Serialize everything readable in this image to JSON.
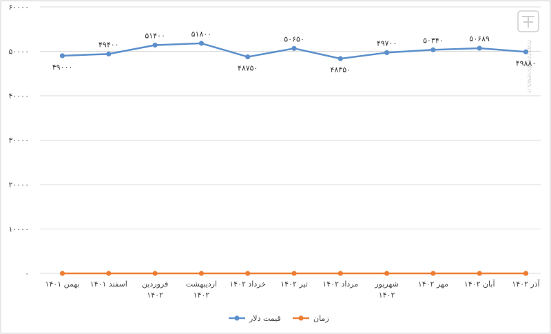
{
  "chart_data": {
    "type": "line",
    "title": "",
    "xlabel": "",
    "ylabel": "",
    "ylim": [
      0,
      60000
    ],
    "y_ticks": [
      0,
      10000,
      20000,
      30000,
      40000,
      50000,
      60000
    ],
    "y_tick_labels": [
      "۰",
      "۱۰۰۰۰",
      "۲۰۰۰۰",
      "۳۰۰۰۰",
      "۴۰۰۰۰",
      "۵۰۰۰۰",
      "۶۰۰۰۰"
    ],
    "categories": [
      [
        "بهمن ۱۴۰۱"
      ],
      [
        "اسفند ۱۴۰۱"
      ],
      [
        "فروردین",
        "۱۴۰۲"
      ],
      [
        "اردیبهشت",
        "۱۴۰۲"
      ],
      [
        "خرداد ۱۴۰۲"
      ],
      [
        "تیر ۱۴۰۲"
      ],
      [
        "مرداد ۱۴۰۲"
      ],
      [
        "شهریور",
        "۱۴۰۲"
      ],
      [
        "مهر ۱۴۰۲"
      ],
      [
        "آبان ۱۴۰۲"
      ],
      [
        "آذر ۱۴۰۲"
      ]
    ],
    "series": [
      {
        "name": "قیمت دلار",
        "color": "#5b8fcb",
        "values": [
          49000,
          49400,
          51400,
          51800,
          48750,
          50650,
          48350,
          49700,
          50340,
          50689,
          49880
        ],
        "labels": [
          "۴۹۰۰۰",
          "۴۹۴۰۰",
          "۵۱۴۰۰",
          "۵۱۸۰۰",
          "۴۸۷۵۰",
          "۵۰۶۵۰",
          "۴۸۳۵۰",
          "۴۹۷۰۰",
          "۵۰۳۴۰",
          "۵۰۶۸۹",
          "۴۹۸۸۰"
        ],
        "label_pos": [
          "below",
          "above",
          "above",
          "above",
          "below",
          "above",
          "below",
          "above",
          "above",
          "above",
          "below"
        ]
      },
      {
        "name": "زمان",
        "color": "#ed7d31",
        "values": [
          0,
          0,
          0,
          0,
          0,
          0,
          0,
          0,
          0,
          0,
          0
        ]
      }
    ],
    "grid": "horizontal",
    "legend_position": "bottom"
  },
  "watermark": {
    "icon": "tasnim-news-logo",
    "text": "mashreghnews.ir"
  }
}
